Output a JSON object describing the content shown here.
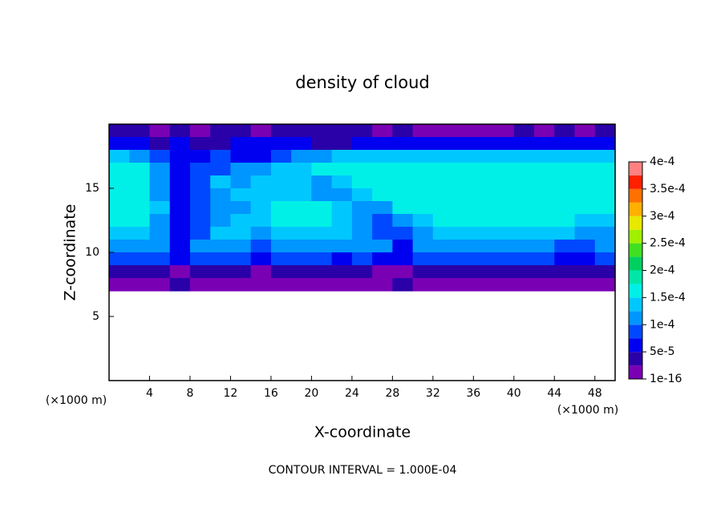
{
  "chart_data": {
    "type": "heatmap",
    "title": "density of cloud",
    "x_label": "X-coordinate",
    "y_label": "Z-coordinate",
    "unit_labels": [
      "(×1000 m)",
      "(×1000 m)"
    ],
    "footer": "CONTOUR INTERVAL = 1.000E-04",
    "xlim": [
      0,
      50
    ],
    "ylim": [
      0,
      20
    ],
    "xticks": [
      4,
      8,
      12,
      16,
      20,
      24,
      28,
      32,
      36,
      40,
      44,
      48
    ],
    "yticks": [
      5,
      10,
      15
    ],
    "x": [
      1,
      3,
      5,
      7,
      9,
      11,
      13,
      15,
      17,
      19,
      21,
      23,
      25,
      27,
      29,
      31,
      33,
      35,
      37,
      39,
      41,
      43,
      45,
      47,
      49
    ],
    "y": [
      19.5,
      18.5,
      17.5,
      16.5,
      15.5,
      14.5,
      13.5,
      12.5,
      11.5,
      10.5,
      9.5,
      8.5,
      7.5
    ],
    "values": [
      [
        3e-05,
        3e-05,
        2e-05,
        3e-05,
        2e-05,
        3e-05,
        3e-05,
        2e-05,
        3e-05,
        3e-05,
        3e-05,
        3e-05,
        3e-05,
        2e-05,
        3e-05,
        2e-05,
        1.5e-05,
        2e-05,
        1.5e-05,
        2e-05,
        3e-05,
        2e-05,
        3e-05,
        2e-05,
        3e-05
      ],
      [
        7e-05,
        6e-05,
        4e-05,
        5e-05,
        4e-05,
        4e-05,
        5e-05,
        5e-05,
        6e-05,
        5e-05,
        4e-05,
        4e-05,
        5e-05,
        6e-05,
        7e-05,
        7e-05,
        6e-05,
        6e-05,
        6e-05,
        6e-05,
        7e-05,
        7e-05,
        7e-05,
        7e-05,
        7e-05
      ],
      [
        0.00013,
        0.00012,
        9e-05,
        6e-05,
        7e-05,
        8e-05,
        7e-05,
        7e-05,
        8e-05,
        0.00011,
        0.00012,
        0.00013,
        0.00013,
        0.00014,
        0.00014,
        0.00014,
        0.000145,
        0.000145,
        0.000145,
        0.000145,
        0.000145,
        0.000145,
        0.000145,
        0.000145,
        0.00013
      ],
      [
        0.000155,
        0.00015,
        0.00012,
        6e-05,
        8e-05,
        9e-05,
        0.0001,
        0.00012,
        0.00013,
        0.00014,
        0.00015,
        0.00015,
        0.000155,
        0.000155,
        0.000155,
        0.000155,
        0.000155,
        0.000155,
        0.00016,
        0.00016,
        0.000155,
        0.000155,
        0.000155,
        0.000155,
        0.00015
      ],
      [
        0.00016,
        0.000155,
        0.00012,
        6e-05,
        9e-05,
        0.00013,
        0.00011,
        0.000135,
        0.00014,
        0.00013,
        0.00012,
        0.000145,
        0.000155,
        0.000155,
        0.000155,
        0.000155,
        0.00016,
        0.00016,
        0.00016,
        0.00016,
        0.00016,
        0.00016,
        0.000155,
        0.000155,
        0.00015
      ],
      [
        0.000165,
        0.00016,
        0.00012,
        6e-05,
        8e-05,
        0.0001,
        0.00013,
        0.00014,
        0.000145,
        0.00014,
        0.00012,
        0.0001,
        0.00013,
        0.00015,
        0.000155,
        0.000155,
        0.00016,
        0.00016,
        0.000165,
        0.00016,
        0.00016,
        0.00016,
        0.000155,
        0.000155,
        0.00015
      ],
      [
        0.000165,
        0.00016,
        0.000125,
        6e-05,
        8e-05,
        0.00011,
        0.00012,
        0.00014,
        0.000155,
        0.000155,
        0.00015,
        0.00013,
        0.0001,
        0.00012,
        0.00015,
        0.000155,
        0.000155,
        0.00016,
        0.00016,
        0.00016,
        0.00016,
        0.00016,
        0.000155,
        0.000155,
        0.00015
      ],
      [
        0.000155,
        0.00015,
        0.00012,
        6e-05,
        8e-05,
        0.00012,
        0.00014,
        0.00013,
        0.00015,
        0.000155,
        0.00015,
        0.00014,
        0.00011,
        9e-05,
        0.00012,
        0.000145,
        0.00015,
        0.00015,
        0.000155,
        0.00015,
        0.00015,
        0.00015,
        0.00015,
        0.000145,
        0.00014
      ],
      [
        0.00013,
        0.00013,
        0.00012,
        6e-05,
        9e-05,
        0.000125,
        0.000135,
        0.00011,
        0.00014,
        0.00014,
        0.00014,
        0.000135,
        0.00012,
        9e-05,
        8e-05,
        0.00012,
        0.000135,
        0.000135,
        0.000135,
        0.000135,
        0.000135,
        0.00013,
        0.00013,
        0.00011,
        0.00012
      ],
      [
        0.00011,
        0.00011,
        0.0001,
        6e-05,
        0.0001,
        0.000115,
        0.00012,
        9e-05,
        0.00012,
        0.00012,
        0.00012,
        0.00012,
        0.000115,
        0.0001,
        7e-05,
        0.000105,
        0.000115,
        0.000115,
        0.000115,
        0.000115,
        0.000115,
        0.00011,
        9e-05,
        8e-05,
        0.0001
      ],
      [
        8e-05,
        8e-05,
        8e-05,
        6e-05,
        8e-05,
        8e-05,
        8e-05,
        7e-05,
        8e-05,
        8e-05,
        8e-05,
        7e-05,
        8e-05,
        7e-05,
        6e-05,
        8e-05,
        8e-05,
        8e-05,
        8e-05,
        8e-05,
        8e-05,
        8e-05,
        7e-05,
        7e-05,
        8e-05
      ],
      [
        4.5e-05,
        4.5e-05,
        4e-05,
        2e-05,
        4e-05,
        4e-05,
        4e-05,
        2e-05,
        4e-05,
        4e-05,
        4e-05,
        3e-05,
        3e-05,
        2e-05,
        2e-05,
        4e-05,
        4e-05,
        4e-05,
        4e-05,
        4e-05,
        4e-05,
        4e-05,
        4e-05,
        4e-05,
        4e-05
      ],
      [
        1.5e-05,
        1.5e-05,
        1.5e-05,
        3e-05,
        1.5e-05,
        1.5e-05,
        1.5e-05,
        1.5e-05,
        1.5e-05,
        1.5e-05,
        1.5e-05,
        1.5e-05,
        1.5e-05,
        1.5e-05,
        3e-05,
        1.5e-05,
        1.5e-05,
        1.5e-05,
        1.5e-05,
        1.5e-05,
        1.5e-05,
        1.5e-05,
        1.5e-05,
        1.5e-05,
        1.5e-05
      ]
    ],
    "levels": [
      1e-16,
      2.5e-05,
      5e-05,
      7.5e-05,
      0.0001,
      0.000125,
      0.00015,
      0.000175,
      0.0002,
      0.000225,
      0.00025,
      0.000275,
      0.0003,
      0.000325,
      0.00035,
      0.000375,
      0.0004
    ],
    "colors": [
      "#7a00b4",
      "#2a00a8",
      "#0000f0",
      "#0048ff",
      "#0096ff",
      "#00c8ff",
      "#00f0e8",
      "#00e6a8",
      "#00d060",
      "#40e020",
      "#a0f000",
      "#e8e800",
      "#ffb000",
      "#ff7000",
      "#ff2000",
      "#ff8080"
    ],
    "colorbar_ticks": [
      1e-16,
      {
        "value": 5e-05,
        "label": "5e-5"
      },
      {
        "value": 0.0001,
        "label": "1e-4"
      },
      {
        "value": 0.00015,
        "label": "1.5e-4"
      },
      {
        "value": 0.0002,
        "label": "2e-4"
      },
      {
        "value": 0.00025,
        "label": "2.5e-4"
      },
      {
        "value": 0.0003,
        "label": "3e-4"
      },
      {
        "value": 0.00035,
        "label": "3.5e-4"
      },
      {
        "value": 0.0004,
        "label": "4e-4"
      }
    ]
  }
}
